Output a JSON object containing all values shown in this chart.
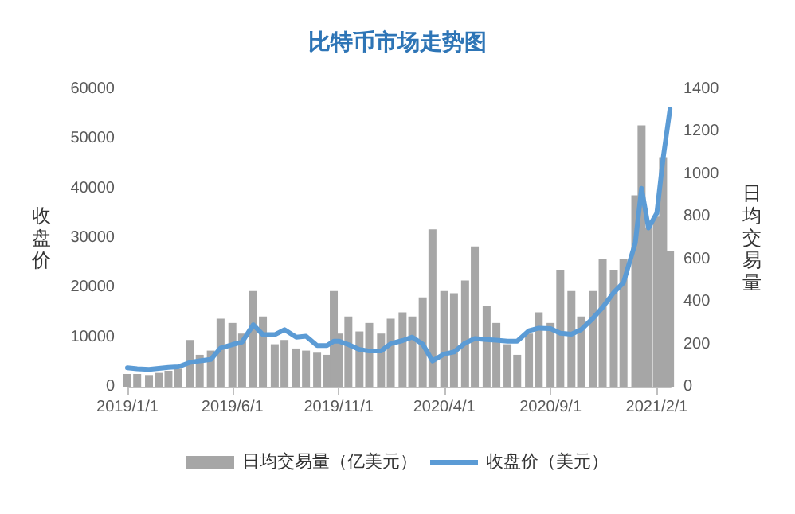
{
  "chart_data": {
    "type": "bar",
    "title": "比特币市场走势图",
    "ylabel": "收盘价",
    "y2label": "日均交易量",
    "x": [
      "2019-01-01",
      "2019-01-15",
      "2019-02-01",
      "2019-02-15",
      "2019-03-01",
      "2019-03-15",
      "2019-04-01",
      "2019-04-15",
      "2019-05-01",
      "2019-05-15",
      "2019-06-01",
      "2019-06-15",
      "2019-07-01",
      "2019-07-15",
      "2019-08-01",
      "2019-08-15",
      "2019-09-01",
      "2019-09-15",
      "2019-10-01",
      "2019-10-15",
      "2019-10-25",
      "2019-11-01",
      "2019-11-15",
      "2019-12-01",
      "2019-12-15",
      "2020-01-01",
      "2020-01-15",
      "2020-02-01",
      "2020-02-15",
      "2020-03-01",
      "2020-03-15",
      "2020-04-01",
      "2020-04-15",
      "2020-05-01",
      "2020-05-15",
      "2020-06-01",
      "2020-06-15",
      "2020-07-01",
      "2020-07-15",
      "2020-08-01",
      "2020-08-15",
      "2020-09-01",
      "2020-09-15",
      "2020-10-01",
      "2020-10-15",
      "2020-11-01",
      "2020-11-15",
      "2020-12-01",
      "2020-12-15",
      "2021-01-01",
      "2021-01-10",
      "2021-01-20",
      "2021-02-01",
      "2021-02-10",
      "2021-02-20"
    ],
    "series": [
      {
        "name": "日均交易量（亿美元）",
        "axis": "y2",
        "color": "#a6a6a6",
        "values": [
          60,
          60,
          55,
          65,
          75,
          85,
          220,
          150,
          170,
          320,
          300,
          250,
          450,
          330,
          200,
          220,
          180,
          170,
          160,
          150,
          450,
          250,
          330,
          260,
          300,
          250,
          320,
          350,
          330,
          420,
          740,
          450,
          440,
          500,
          660,
          380,
          300,
          200,
          150,
          250,
          350,
          300,
          550,
          450,
          330,
          450,
          600,
          550,
          600,
          900,
          1230,
          750,
          800,
          1080,
          640
        ]
      },
      {
        "name": "收盘价（美元）",
        "type": "line",
        "color": "#5b9bd5",
        "values": [
          3800,
          3600,
          3500,
          3700,
          3900,
          4000,
          4900,
          5200,
          5500,
          7800,
          8500,
          9000,
          12500,
          10500,
          10500,
          11500,
          10000,
          10200,
          8300,
          8300,
          9200,
          9200,
          8500,
          7500,
          7200,
          7200,
          8700,
          9300,
          10000,
          8600,
          5200,
          6600,
          7000,
          8800,
          9700,
          9500,
          9400,
          9200,
          9200,
          11300,
          11800,
          11700,
          10800,
          10600,
          11500,
          13800,
          16000,
          19000,
          21000,
          29000,
          40000,
          32000,
          35000,
          46000,
          56000
        ]
      }
    ],
    "ylim": [
      0,
      60000
    ],
    "yticks": [
      0,
      10000,
      20000,
      30000,
      40000,
      50000,
      60000
    ],
    "y2lim": [
      0,
      1400
    ],
    "y2ticks": [
      0,
      200,
      400,
      600,
      800,
      1000,
      1200,
      1400
    ],
    "xlim": [
      "2019-01-01",
      "2021-02-21"
    ],
    "xticks": [
      {
        "value": "2019-01-01",
        "label": "2019/1/1"
      },
      {
        "value": "2019-06-01",
        "label": "2019/6/1"
      },
      {
        "value": "2019-11-01",
        "label": "2019/11/1"
      },
      {
        "value": "2020-04-01",
        "label": "2020/4/1"
      },
      {
        "value": "2020-09-01",
        "label": "2020/9/1"
      },
      {
        "value": "2021-02-01",
        "label": "2021/2/1"
      }
    ],
    "grid": false,
    "legend": "bottom",
    "marker": "none",
    "line_style": "solid"
  }
}
